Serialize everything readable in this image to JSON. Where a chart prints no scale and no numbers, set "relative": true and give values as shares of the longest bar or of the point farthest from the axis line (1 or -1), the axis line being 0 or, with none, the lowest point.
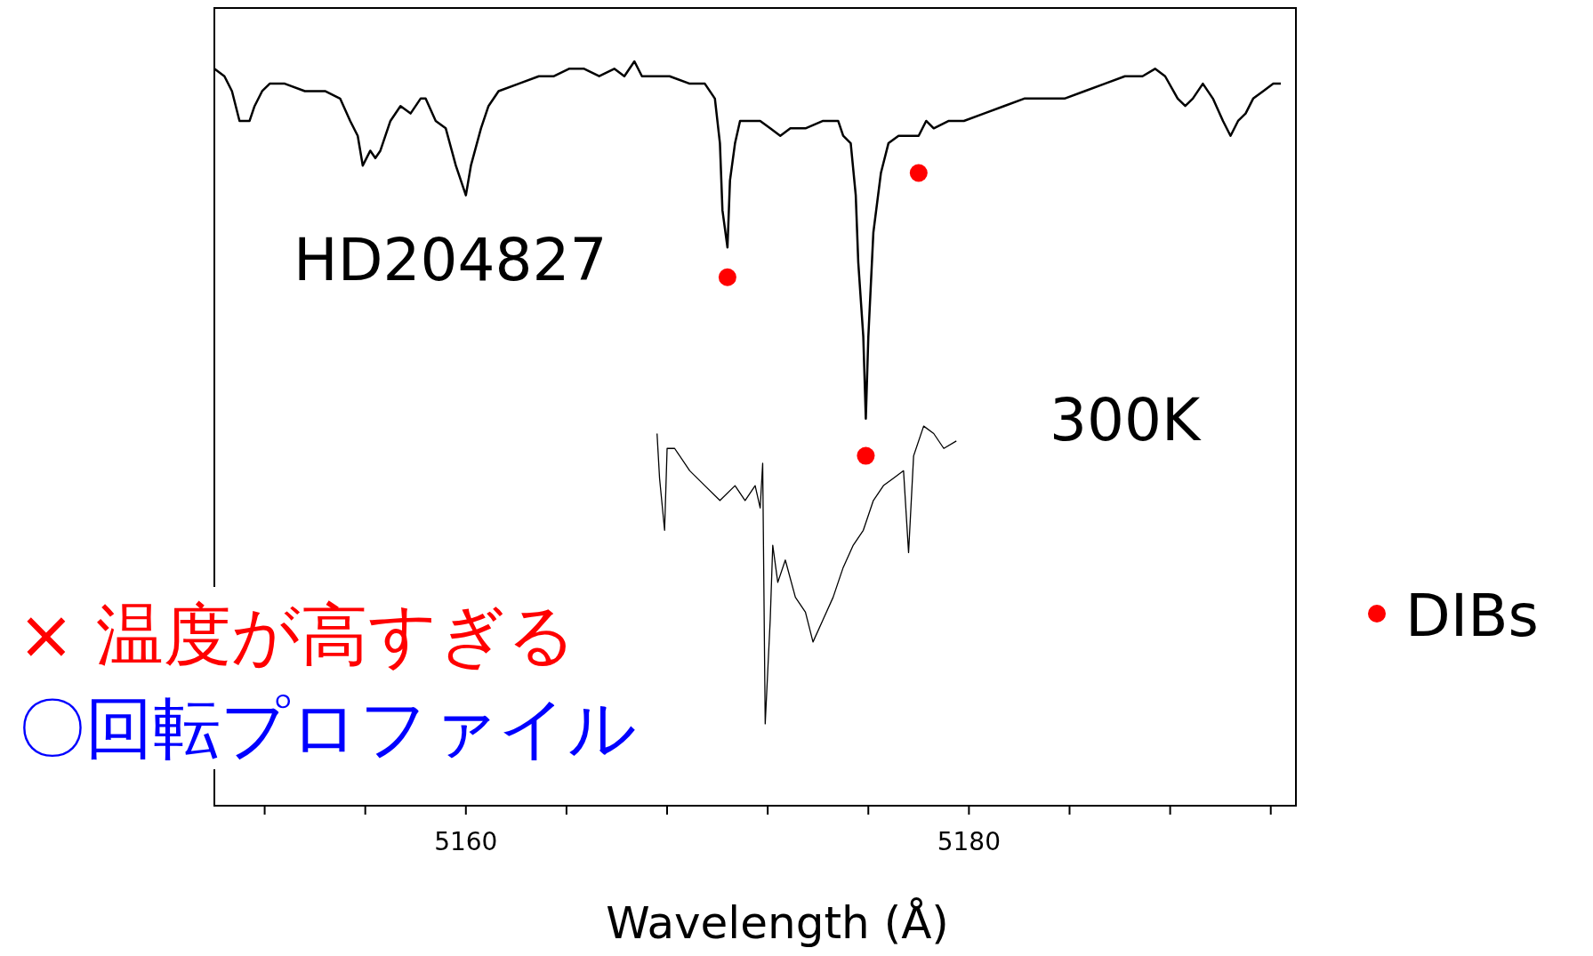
{
  "chart_data": {
    "type": "line",
    "relative": true,
    "xlabel": "Wavelength (Å)",
    "xlim": [
      5150,
      5193
    ],
    "xticks": [
      {
        "value": 5152,
        "label": null
      },
      {
        "value": 5156,
        "label": null
      },
      5160,
      {
        "value": 5164,
        "label": null
      },
      {
        "value": 5168,
        "label": null
      },
      {
        "value": 5172,
        "label": null
      },
      {
        "value": 5176,
        "label": null
      },
      5180,
      {
        "value": 5184,
        "label": null
      },
      {
        "value": 5188,
        "label": null
      },
      {
        "value": 5192,
        "label": null
      }
    ],
    "tick_labels": "x",
    "grid": false,
    "legend": "right",
    "series": [
      {
        "name": "HD204827",
        "color": "#000000",
        "x": [
          5150.0,
          5150.4,
          5150.7,
          5151.0,
          5151.2,
          5151.4,
          5151.6,
          5151.9,
          5152.2,
          5152.8,
          5153.6,
          5154.4,
          5155.0,
          5155.4,
          5155.7,
          5155.9,
          5156.2,
          5156.4,
          5156.6,
          5157.0,
          5157.4,
          5157.8,
          5158.2,
          5158.4,
          5158.8,
          5159.2,
          5159.6,
          5160.0,
          5160.2,
          5160.6,
          5160.9,
          5161.3,
          5162.1,
          5162.9,
          5163.5,
          5164.1,
          5164.7,
          5165.3,
          5165.9,
          5166.3,
          5166.7,
          5167.0,
          5167.5,
          5168.1,
          5168.9,
          5169.5,
          5169.9,
          5170.1,
          5170.2,
          5170.4,
          5170.5,
          5170.7,
          5170.9,
          5171.3,
          5171.7,
          5172.1,
          5172.5,
          5172.9,
          5173.5,
          5174.2,
          5174.8,
          5175.0,
          5175.3,
          5175.5,
          5175.6,
          5175.8,
          5175.9,
          5176.0,
          5176.2,
          5176.5,
          5176.8,
          5177.2,
          5177.6,
          5178.0,
          5178.3,
          5178.6,
          5179.2,
          5179.8,
          5180.6,
          5181.4,
          5182.2,
          5183.0,
          5183.8,
          5184.6,
          5185.4,
          5186.2,
          5186.9,
          5187.4,
          5187.8,
          5188.3,
          5188.6,
          5188.9,
          5189.3,
          5189.7,
          5190.1,
          5190.4,
          5190.7,
          5191.0,
          5191.3,
          5191.7,
          5192.1,
          5192.4
        ],
        "values": [
          0.99,
          0.98,
          0.96,
          0.92,
          0.92,
          0.92,
          0.94,
          0.96,
          0.97,
          0.97,
          0.96,
          0.96,
          0.95,
          0.92,
          0.9,
          0.86,
          0.88,
          0.87,
          0.88,
          0.92,
          0.94,
          0.93,
          0.95,
          0.95,
          0.92,
          0.91,
          0.86,
          0.82,
          0.86,
          0.91,
          0.94,
          0.96,
          0.97,
          0.98,
          0.98,
          0.99,
          0.99,
          0.98,
          0.99,
          0.98,
          1.0,
          0.98,
          0.98,
          0.98,
          0.97,
          0.97,
          0.95,
          0.89,
          0.8,
          0.75,
          0.84,
          0.89,
          0.92,
          0.92,
          0.92,
          0.91,
          0.9,
          0.91,
          0.91,
          0.92,
          0.92,
          0.9,
          0.89,
          0.82,
          0.73,
          0.63,
          0.52,
          0.63,
          0.77,
          0.85,
          0.89,
          0.9,
          0.9,
          0.9,
          0.92,
          0.91,
          0.92,
          0.92,
          0.93,
          0.94,
          0.95,
          0.95,
          0.95,
          0.96,
          0.97,
          0.98,
          0.98,
          0.99,
          0.98,
          0.95,
          0.94,
          0.95,
          0.97,
          0.95,
          0.92,
          0.9,
          0.92,
          0.93,
          0.95,
          0.96,
          0.97,
          0.97
        ]
      },
      {
        "name": "300K",
        "color": "#000000",
        "x": [
          5167.6,
          5167.7,
          5167.9,
          5168.0,
          5168.3,
          5168.9,
          5169.5,
          5170.1,
          5170.7,
          5171.1,
          5171.5,
          5171.7,
          5171.8,
          5171.9,
          5172.1,
          5172.2,
          5172.4,
          5172.7,
          5173.1,
          5173.5,
          5173.8,
          5174.2,
          5174.6,
          5175.0,
          5175.4,
          5175.8,
          5176.2,
          5176.6,
          5177.0,
          5177.4,
          5177.6,
          5177.8,
          5178.2,
          5178.6,
          5179.0,
          5179.5
        ],
        "values": [
          0.5,
          0.44,
          0.37,
          0.48,
          0.48,
          0.45,
          0.43,
          0.41,
          0.43,
          0.41,
          0.43,
          0.4,
          0.46,
          0.11,
          0.25,
          0.35,
          0.3,
          0.33,
          0.28,
          0.26,
          0.22,
          0.25,
          0.28,
          0.32,
          0.35,
          0.37,
          0.41,
          0.43,
          0.44,
          0.45,
          0.34,
          0.47,
          0.51,
          0.5,
          0.48,
          0.49
        ]
      },
      {
        "name": "DIBs",
        "type": "scatter",
        "marker": "circle",
        "color": "#ff0000",
        "x": [
          5170.4,
          5175.9,
          5178.0
        ],
        "values": [
          0.71,
          0.47,
          0.85
        ]
      }
    ],
    "annotations": [
      "× 温度が高すぎる",
      "〇回転プロファイル"
    ]
  }
}
